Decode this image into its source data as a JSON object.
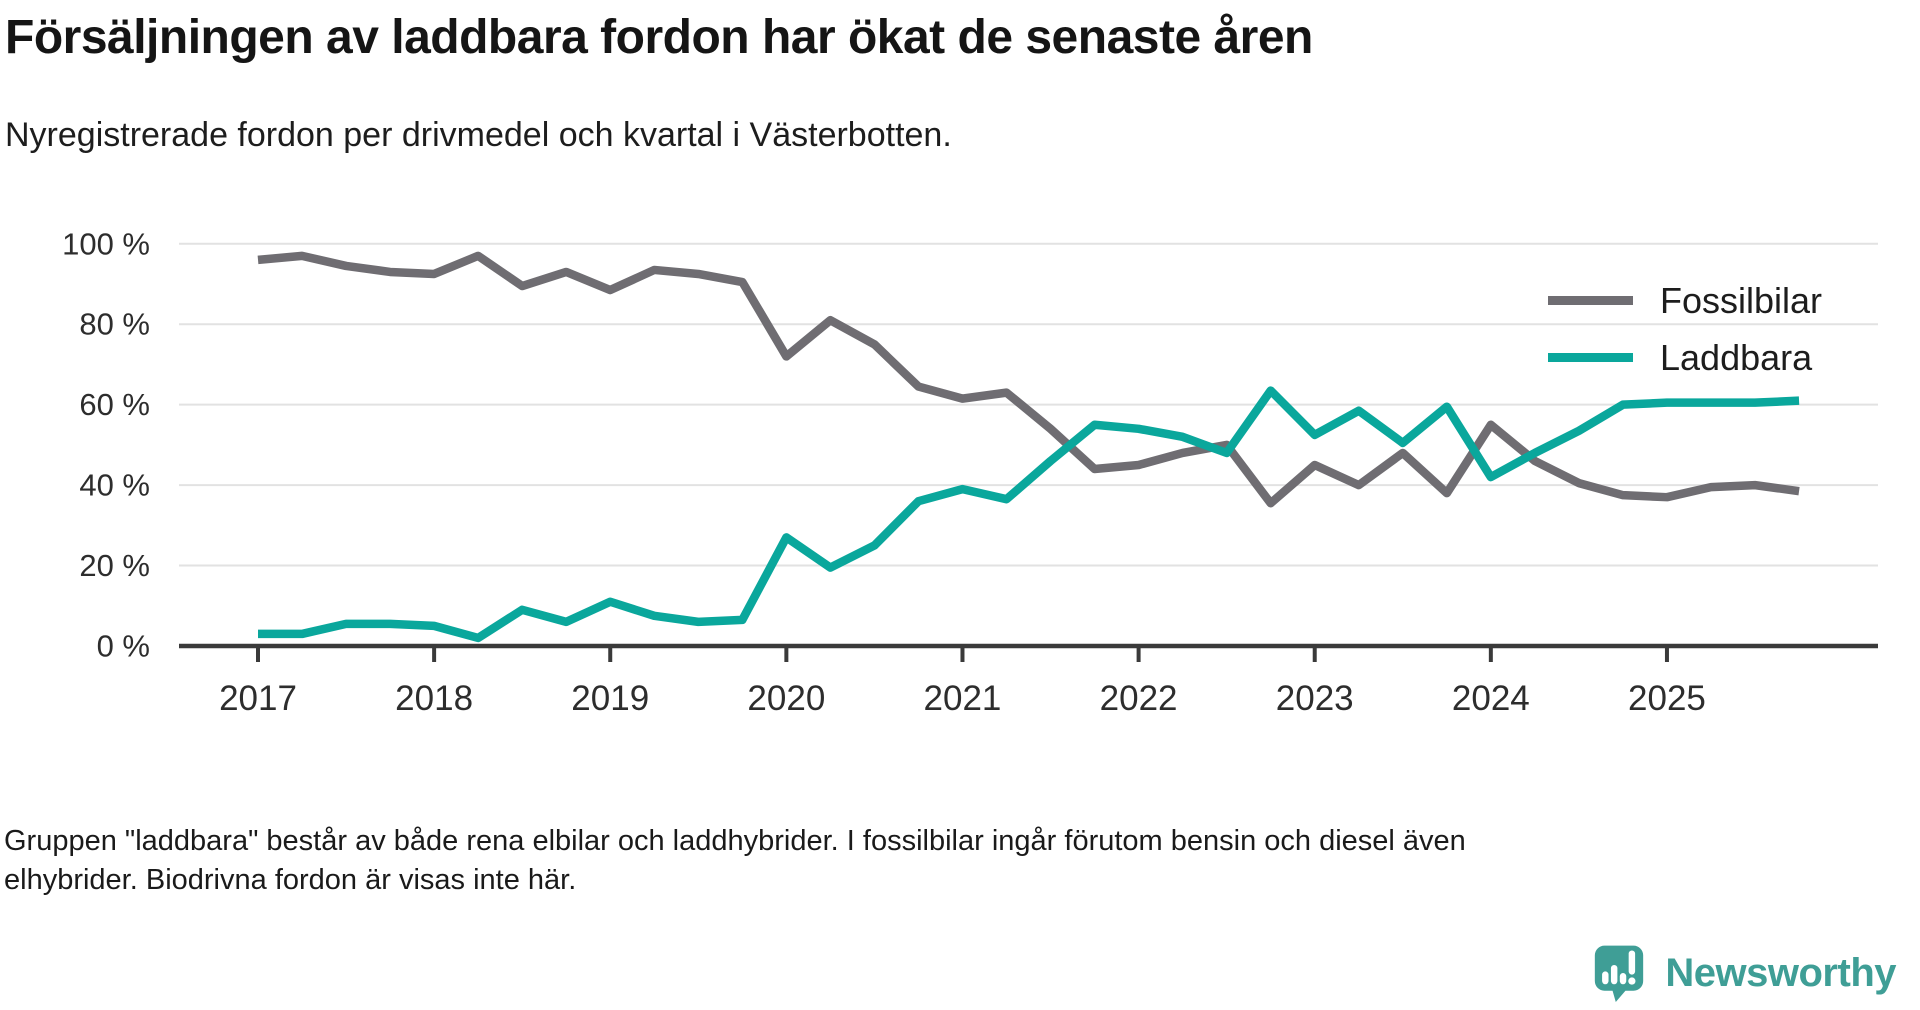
{
  "header": {
    "title": "Försäljningen av laddbara fordon har ökat de senaste åren",
    "subtitle": "Nyregistrerade fordon per drivmedel och kvartal i Västerbotten."
  },
  "chart_data": {
    "type": "line",
    "unit": "%",
    "grid": "horizontal",
    "legend_position": "top-right",
    "ylim": [
      0,
      100
    ],
    "x": [
      "2017 Q1",
      "2017 Q2",
      "2017 Q3",
      "2017 Q4",
      "2018 Q1",
      "2018 Q2",
      "2018 Q3",
      "2018 Q4",
      "2019 Q1",
      "2019 Q2",
      "2019 Q3",
      "2019 Q4",
      "2020 Q1",
      "2020 Q2",
      "2020 Q3",
      "2020 Q4",
      "2021 Q1",
      "2021 Q2",
      "2021 Q3",
      "2021 Q4",
      "2022 Q1",
      "2022 Q2",
      "2022 Q3",
      "2022 Q4",
      "2023 Q1",
      "2023 Q2",
      "2023 Q3",
      "2023 Q4",
      "2024 Q1",
      "2024 Q2",
      "2024 Q3",
      "2024 Q4",
      "2025 Q1",
      "2025 Q2",
      "2025 Q3",
      "2025 Q4"
    ],
    "series": [
      {
        "name": "Fossilbilar",
        "color": "#6f6d72",
        "values": [
          96,
          97,
          94.5,
          93,
          92.5,
          97,
          89.5,
          93,
          88.5,
          93.5,
          92.5,
          90.5,
          72,
          81,
          75,
          64.5,
          61.5,
          63,
          54,
          44,
          45,
          48,
          50,
          35.5,
          45,
          40,
          48,
          38,
          55,
          46,
          40.5,
          37.5,
          37,
          39.5,
          40,
          38.5
        ]
      },
      {
        "name": "Laddbara",
        "color": "#0aa79c",
        "values": [
          3,
          3,
          5.5,
          5.5,
          5,
          2,
          9,
          6,
          11,
          7.5,
          6,
          6.5,
          27,
          19.5,
          25,
          36,
          39,
          36.5,
          46,
          55,
          54,
          52,
          48,
          63.5,
          52.5,
          58.5,
          50.5,
          59.5,
          42,
          48,
          53.5,
          60,
          60.5,
          60.5,
          60.5,
          61
        ]
      }
    ],
    "yticks": [
      {
        "value": 0,
        "label": "0 %"
      },
      {
        "value": 20,
        "label": "20 %"
      },
      {
        "value": 40,
        "label": "40 %"
      },
      {
        "value": 60,
        "label": "60 %"
      },
      {
        "value": 80,
        "label": "80 %"
      },
      {
        "value": 100,
        "label": "100 %"
      }
    ],
    "xticks": [
      {
        "label": "2017",
        "q": 0
      },
      {
        "label": "2018",
        "q": 4
      },
      {
        "label": "2019",
        "q": 8
      },
      {
        "label": "2020",
        "q": 12
      },
      {
        "label": "2021",
        "q": 16
      },
      {
        "label": "2022",
        "q": 20
      },
      {
        "label": "2023",
        "q": 24
      },
      {
        "label": "2024",
        "q": 28
      },
      {
        "label": "2025",
        "q": 32
      }
    ]
  },
  "footer": {
    "line1": "Gruppen \"laddbara\" består av både rena elbilar och laddhybrider. I fossilbilar ingår förutom bensin och diesel även",
    "line2": "elhybrider. Biodrivna fordon är visas inte här."
  },
  "logo": {
    "text": "Newsworthy",
    "color": "#3f9e96"
  }
}
